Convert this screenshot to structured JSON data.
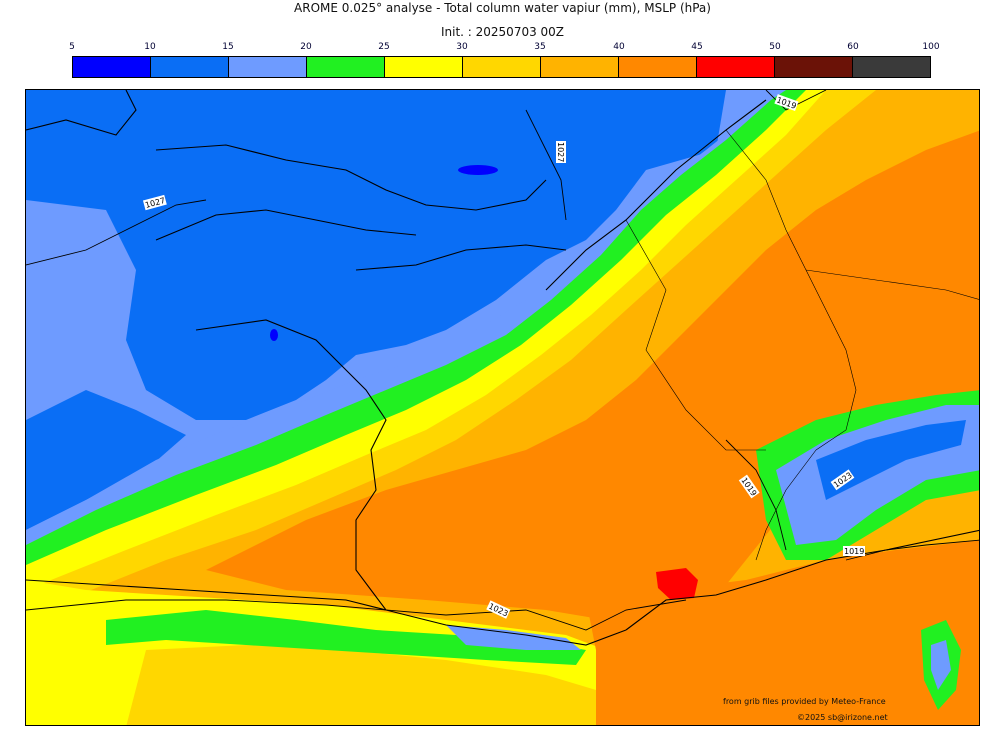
{
  "header": {
    "title": "AROME 0.025° analyse - Total column water vapiur (mm), MSLP (hPa)",
    "init": "Init. : 20250703 00Z"
  },
  "colorbar": {
    "ticks": [
      "5",
      "10",
      "15",
      "20",
      "25",
      "30",
      "35",
      "40",
      "45",
      "50",
      "60",
      "100"
    ],
    "colors": [
      "#0000ff",
      "#0a6ef5",
      "#6e9bff",
      "#21f021",
      "#ffff00",
      "#ffd700",
      "#ffb300",
      "#ff8800",
      "#ff0000",
      "#6b1207",
      "#3a3a3a"
    ]
  },
  "isobars": {
    "labels": [
      "1027",
      "1027",
      "1019",
      "1019",
      "1023",
      "1019",
      "1023"
    ]
  },
  "credits": {
    "source": "from grib files provided by Meteo-France",
    "copyright": "©2025 sb@irizone.net"
  }
}
